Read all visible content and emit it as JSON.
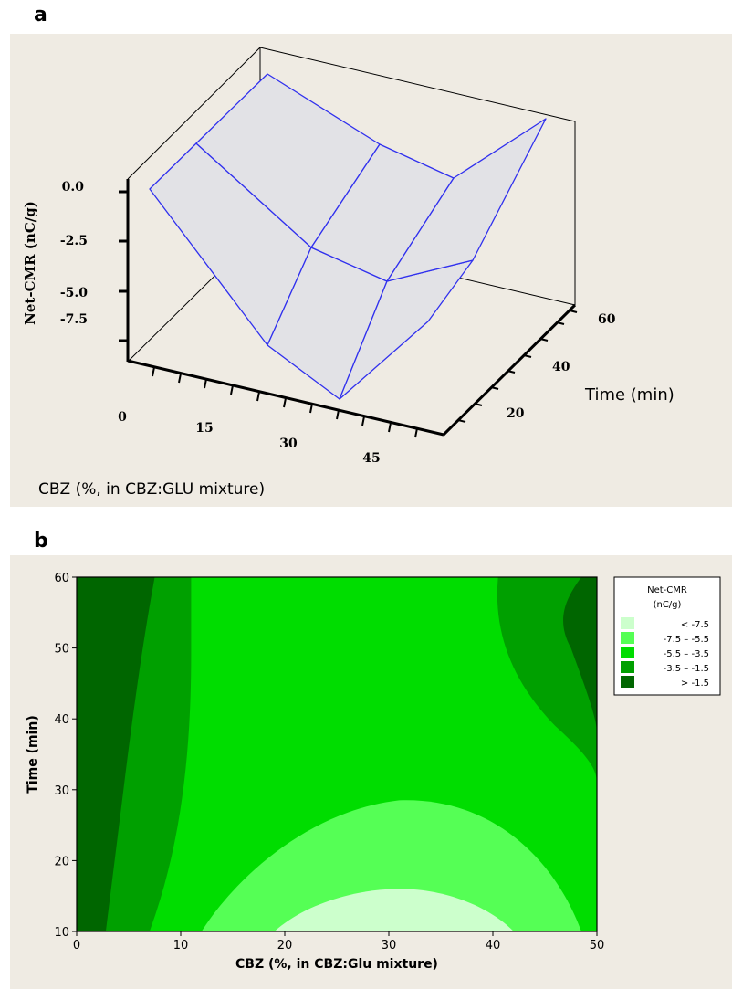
{
  "panels": {
    "a": {
      "letter": "a"
    },
    "b": {
      "letter": "b"
    }
  },
  "chart_data": [
    {
      "type": "surface",
      "panel": "a",
      "xlabel": "CBZ (%, in CBZ:GLU mixture)",
      "ylabel": "Time (min)",
      "zlabel": "Net-CMR (nC/g)",
      "x_ticks": [
        "0",
        "15",
        "30",
        "45"
      ],
      "y_ticks": [
        "20",
        "40",
        "60"
      ],
      "z_ticks": [
        "0.0",
        "-2.5",
        "-5.0",
        "-7.5"
      ],
      "x": [
        0,
        25,
        50
      ],
      "y": [
        10,
        35,
        60
      ],
      "z": [
        [
          -1.0,
          -5.4,
          -1.3
        ],
        [
          -2.7,
          -9.8,
          -7.4
        ],
        [
          -1.7,
          -4.8,
          0.6
        ]
      ],
      "colors": {
        "surface_fill": "#e2e2e6",
        "surface_edge": "#3030ee",
        "background": "#efebe3"
      }
    },
    {
      "type": "contour",
      "panel": "b",
      "xlabel": "CBZ (%, in CBZ:Glu mixture)",
      "ylabel": "Time (min)",
      "xlim": [
        0,
        50
      ],
      "ylim": [
        10,
        60
      ],
      "x_ticks": [
        "0",
        "10",
        "20",
        "30",
        "40",
        "50"
      ],
      "y_ticks": [
        "10",
        "20",
        "30",
        "40",
        "50",
        "60"
      ],
      "legend": {
        "title_line1": "Net-CMR",
        "title_line2": "(nC/g)",
        "placement": "right",
        "entries": [
          {
            "label": "< -7.5",
            "color": "#ccffcc"
          },
          {
            "label": "-7.5 – -5.5",
            "color": "#55ff55"
          },
          {
            "label": "-5.5 – -3.5",
            "color": "#00dd00"
          },
          {
            "label": "-3.5 – -1.5",
            "color": "#00a000"
          },
          {
            "label": "> -1.5",
            "color": "#006600"
          }
        ]
      }
    }
  ]
}
